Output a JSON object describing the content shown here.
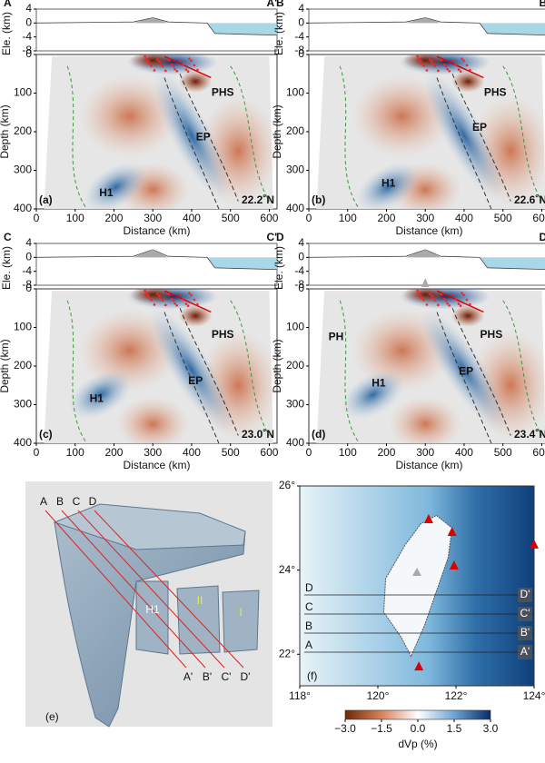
{
  "axes": {
    "elevation_label": "Ele. (km)",
    "depth_label": "Depth (km)",
    "distance_label": "Distance (km)",
    "elevation_lim": [
      -8,
      4
    ],
    "elevation_ticks": [
      4,
      0,
      -4,
      -8
    ],
    "depth_lim": [
      0,
      400
    ],
    "depth_ticks": [
      0,
      100,
      200,
      300,
      400
    ],
    "distance_lim": [
      0,
      620
    ],
    "distance_ticks": [
      0,
      100,
      200,
      300,
      400,
      500,
      600
    ]
  },
  "sections": [
    {
      "start": "A",
      "end": "A'",
      "panel": "(a)",
      "latitude": "22.2˚N",
      "labels": [
        "PHS",
        "EP",
        "H1"
      ]
    },
    {
      "start": "B",
      "end": "B'",
      "panel": "(b)",
      "latitude": "22.6˚N",
      "labels": [
        "PHS",
        "EP",
        "H1"
      ]
    },
    {
      "start": "C",
      "end": "C'",
      "panel": "(c)",
      "latitude": "23.0˚N",
      "labels": [
        "PHS",
        "EP",
        "H1"
      ]
    },
    {
      "start": "D",
      "end": "D'",
      "panel": "(d)",
      "latitude": "23.4˚N",
      "labels": [
        "PH",
        "PHS",
        "EP",
        "H1"
      ]
    }
  ],
  "model_3d": {
    "panel": "(e)",
    "profile_starts": [
      "A",
      "B",
      "C",
      "D"
    ],
    "profile_ends": [
      "A'",
      "B'",
      "C'",
      "D'"
    ],
    "block_labels": [
      "H1",
      "II",
      "I"
    ]
  },
  "map": {
    "panel": "(f)",
    "lon_lim": [
      118,
      124
    ],
    "lat_lim": [
      21.25,
      26
    ],
    "lon_ticks": [
      {
        "value": 118,
        "label": "118°"
      },
      {
        "value": 120,
        "label": "120°"
      },
      {
        "value": 122,
        "label": "122°"
      },
      {
        "value": 124,
        "label": "124°"
      }
    ],
    "lat_ticks": [
      {
        "value": 22,
        "label": "22°"
      },
      {
        "value": 24,
        "label": "24°"
      },
      {
        "value": 26,
        "label": "26°"
      }
    ],
    "profile_starts": [
      "A",
      "B",
      "C",
      "D"
    ],
    "profile_ends": [
      "A'",
      "B'",
      "C'",
      "D'"
    ]
  },
  "colorbar": {
    "label": "dVp (%)",
    "lim": [
      -3,
      3
    ],
    "ticks": [
      {
        "value": -3,
        "label": "−3.0"
      },
      {
        "value": -1.5,
        "label": "−1.5"
      },
      {
        "value": 0,
        "label": "0.0"
      },
      {
        "value": 1.5,
        "label": "1.5"
      },
      {
        "value": 3,
        "label": "3.0"
      }
    ]
  }
}
